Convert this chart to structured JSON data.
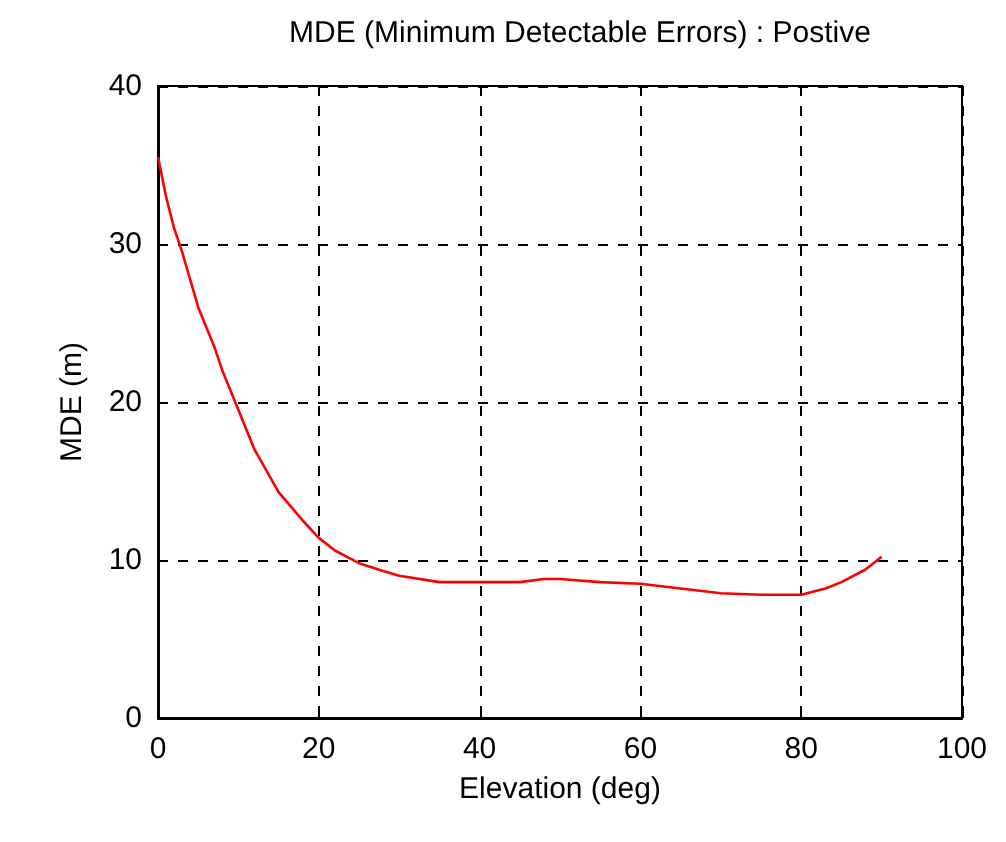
{
  "chart_data": {
    "type": "line",
    "title": "MDE (Minimum Detectable Errors) : Postive",
    "xlabel": "Elevation (deg)",
    "ylabel": "MDE (m)",
    "series": [
      {
        "color": "#ff0000",
        "x": [
          0,
          1,
          2,
          3,
          5,
          7,
          8,
          10,
          12,
          15,
          18,
          20,
          22,
          25,
          28,
          30,
          35,
          40,
          45,
          48,
          50,
          55,
          60,
          65,
          70,
          75,
          80,
          83,
          85,
          88,
          90
        ],
        "values": [
          35.5,
          33,
          31,
          29.5,
          26,
          23.5,
          22,
          19.5,
          17,
          14.3,
          12.5,
          11.4,
          10.6,
          9.8,
          9.3,
          9,
          8.6,
          8.6,
          8.6,
          8.8,
          8.8,
          8.6,
          8.5,
          8.2,
          7.9,
          7.8,
          7.8,
          8.2,
          8.6,
          9.4,
          10.2
        ]
      }
    ],
    "xlim": [
      0,
      100
    ],
    "xticks": [
      0,
      20,
      40,
      60,
      80,
      100
    ],
    "ylim": [
      0,
      40
    ],
    "yticks": [
      0,
      10,
      20,
      30,
      40
    ],
    "grid": true,
    "marker": "none",
    "line_style": "solid"
  }
}
